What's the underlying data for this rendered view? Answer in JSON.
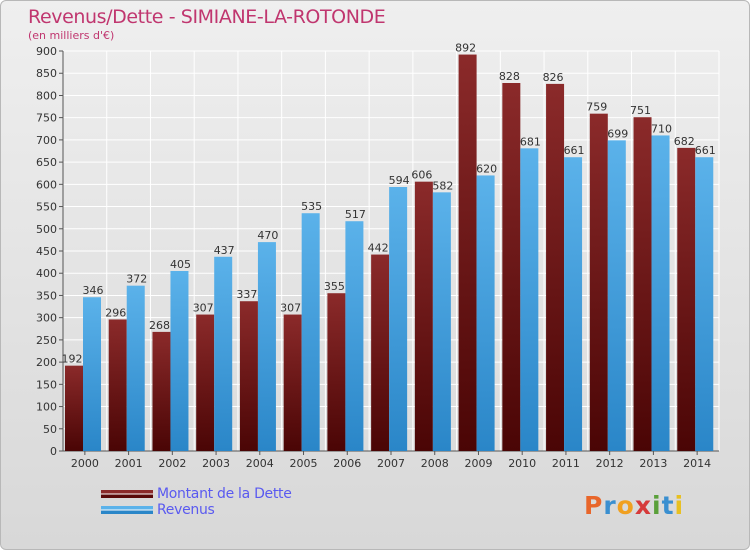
{
  "header": {
    "title": "Revenus/Dette - SIMIANE-LA-ROTONDE",
    "subtitle": "(en milliers d'€)"
  },
  "legend": {
    "items": [
      {
        "label": "Montant de la Dette",
        "color": "#7a1a1a"
      },
      {
        "label": "Revenus",
        "color": "#3a9ee0"
      }
    ]
  },
  "logo": {
    "letters": [
      "P",
      "r",
      "o",
      "x",
      "i",
      "t",
      "i"
    ],
    "colors": [
      "#e8662a",
      "#3a8fd0",
      "#f0a020",
      "#d63a3a",
      "#5aa03a",
      "#3a8fd0",
      "#e8c020"
    ]
  },
  "chart_data": {
    "type": "bar",
    "categories": [
      "2000",
      "2001",
      "2002",
      "2003",
      "2004",
      "2005",
      "2006",
      "2007",
      "2008",
      "2009",
      "2010",
      "2011",
      "2012",
      "2013",
      "2014"
    ],
    "series": [
      {
        "name": "Montant de la Dette",
        "color": "#7a1a1a",
        "values": [
          192,
          296,
          268,
          307,
          337,
          307,
          355,
          442,
          606,
          892,
          828,
          826,
          759,
          751,
          682
        ]
      },
      {
        "name": "Revenus",
        "color": "#3a9ee0",
        "values": [
          346,
          372,
          405,
          437,
          470,
          535,
          517,
          594,
          582,
          620,
          681,
          661,
          699,
          710,
          661
        ]
      }
    ],
    "yticks": [
      0,
      50,
      100,
      150,
      200,
      250,
      300,
      350,
      400,
      450,
      500,
      550,
      600,
      650,
      700,
      750,
      800,
      850,
      900
    ],
    "ylim": [
      0,
      900
    ],
    "grid": true
  }
}
